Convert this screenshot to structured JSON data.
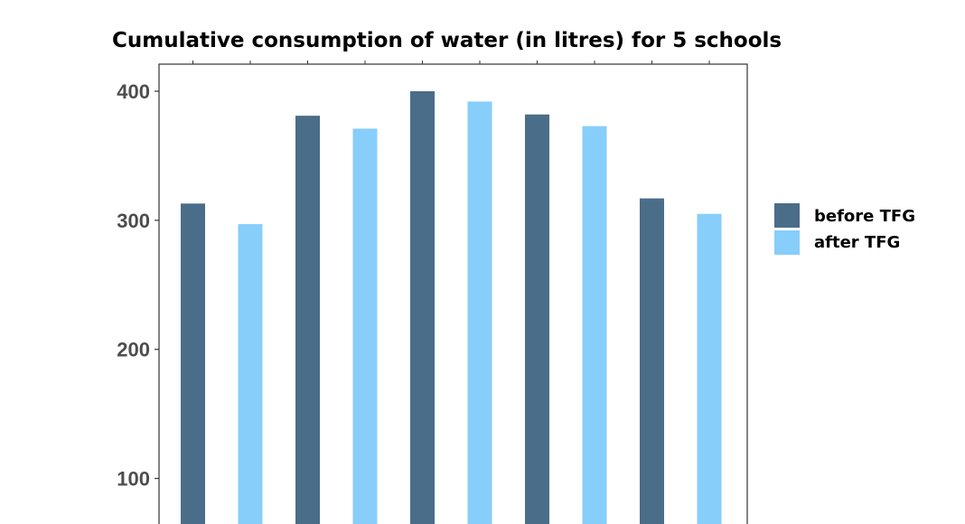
{
  "chart_data": {
    "type": "bar",
    "title": "Cumulative consumption of water (in litres) for 5 schools",
    "xlabel": "",
    "ylabel": "",
    "categories": [
      "",
      "",
      "",
      "",
      ""
    ],
    "series": [
      {
        "name": "before TFG",
        "color": "#4a6d89",
        "values": [
          313,
          381,
          400,
          382,
          317
        ]
      },
      {
        "name": "after TFG",
        "color": "#87cefa",
        "values": [
          297,
          371,
          392,
          373,
          305
        ]
      }
    ],
    "yticks": [
      100,
      200,
      300,
      400
    ],
    "ylim": [
      57,
      421
    ],
    "grid": false,
    "legend_position": "right"
  }
}
